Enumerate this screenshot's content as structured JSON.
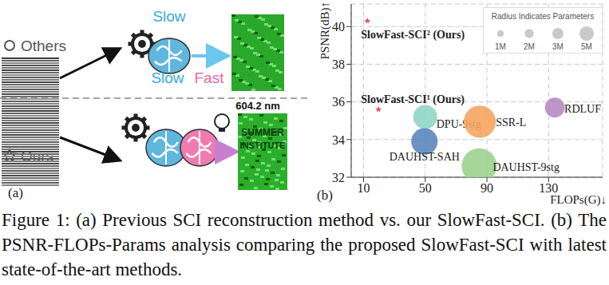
{
  "panel_a": {
    "label": "(a)",
    "others_label": "Others",
    "ours_label": "Ours",
    "top_model": [
      "Slow"
    ],
    "bottom_model": [
      "Slow",
      "Fast"
    ],
    "wavelength": "604.2 nm",
    "reconstruction_text": [
      "SUMMER",
      "INSTITUTE"
    ]
  },
  "chart_data": {
    "type": "scatter",
    "panel_label": "(b)",
    "x_label": "FLOPs(G)↓",
    "y_label": "PSNR(dB)↑",
    "xlim": [
      2,
      165
    ],
    "xticks": [
      10,
      50,
      90,
      130
    ],
    "ylim": [
      32,
      41.2
    ],
    "yticks": [
      32,
      34,
      36,
      38,
      40
    ],
    "grid": true,
    "size_legend": {
      "title": "Radius Indicates Parameters",
      "sizes": [
        {
          "value": 1,
          "label": "1M"
        },
        {
          "value": 2,
          "label": "2M"
        },
        {
          "value": 3,
          "label": "3M"
        },
        {
          "value": 5,
          "label": "5M"
        }
      ]
    },
    "series": [
      {
        "name": "SlowFast-SCI² (Ours)",
        "color": "#e8505b",
        "marker": "star",
        "x": [
          12.5
        ],
        "values": [
          40.3
        ],
        "params": [
          0.8
        ]
      },
      {
        "name": "SlowFast-SCI¹ (Ours)",
        "color": "#e8505b",
        "marker": "star",
        "x": [
          19.7
        ],
        "values": [
          35.6
        ],
        "params": [
          0.8
        ]
      },
      {
        "name": "DPU-9stg",
        "color": "#8fd6c4",
        "marker": "circle",
        "x": [
          50
        ],
        "values": [
          35.2
        ],
        "params": [
          2.8
        ]
      },
      {
        "name": "SSR-L",
        "color": "#f5a561",
        "marker": "circle",
        "x": [
          85.4
        ],
        "values": [
          34.95
        ],
        "params": [
          5
        ]
      },
      {
        "name": "RDLUF",
        "color": "#b78ac4",
        "marker": "circle",
        "x": [
          134
        ],
        "values": [
          35.7
        ],
        "params": [
          1.9
        ]
      },
      {
        "name": "DAUHST-SAH",
        "color": "#5b86bd",
        "marker": "circle",
        "x": [
          49.5
        ],
        "values": [
          33.9
        ],
        "params": [
          3.4
        ]
      },
      {
        "name": "DAUHST-9stg",
        "color": "#9bd38f",
        "marker": "circle",
        "x": [
          85
        ],
        "values": [
          32.6
        ],
        "params": [
          6
        ]
      }
    ]
  },
  "caption": "Figure 1: (a) Previous SCI reconstruction method vs. our SlowFast-SCI. (b) The PSNR-FLOPs-Params analysis comparing the proposed SlowFast-SCI with latest state-of-the-art methods."
}
